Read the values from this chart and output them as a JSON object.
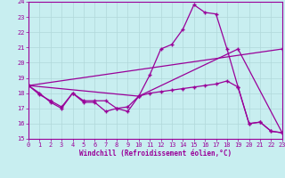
{
  "xlabel": "Windchill (Refroidissement éolien,°C)",
  "bg_color": "#c8eef0",
  "grid_color": "#b0d8da",
  "line_color": "#990099",
  "xlim": [
    0,
    23
  ],
  "ylim": [
    15,
    24
  ],
  "yticks": [
    15,
    16,
    17,
    18,
    19,
    20,
    21,
    22,
    23,
    24
  ],
  "xticks": [
    0,
    1,
    2,
    3,
    4,
    5,
    6,
    7,
    8,
    9,
    10,
    11,
    12,
    13,
    14,
    15,
    16,
    17,
    18,
    19,
    20,
    21,
    22,
    23
  ],
  "line1_x": [
    0,
    1,
    2,
    3,
    4,
    5,
    6,
    7,
    8,
    9,
    10,
    11,
    12,
    13,
    14,
    15,
    16,
    17,
    18,
    19,
    20,
    21,
    22,
    23
  ],
  "line1_y": [
    18.5,
    18.0,
    17.4,
    17.0,
    18.0,
    17.4,
    17.4,
    16.8,
    17.0,
    16.8,
    17.8,
    19.2,
    20.9,
    21.2,
    22.2,
    23.8,
    23.3,
    23.2,
    20.9,
    18.4,
    16.0,
    16.1,
    15.5,
    15.4
  ],
  "line2_x": [
    0,
    10,
    19,
    23
  ],
  "line2_y": [
    18.5,
    17.8,
    20.9,
    15.4
  ],
  "line3_x": [
    0,
    23
  ],
  "line3_y": [
    18.5,
    20.9
  ],
  "line4_x": [
    0,
    1,
    2,
    3,
    4,
    5,
    6,
    7,
    8,
    9,
    10,
    11,
    12,
    13,
    14,
    15,
    16,
    17,
    18,
    19,
    20,
    21,
    22,
    23
  ],
  "line4_y": [
    18.5,
    17.9,
    17.5,
    17.1,
    18.0,
    17.5,
    17.5,
    17.5,
    17.0,
    17.1,
    17.8,
    18.0,
    18.1,
    18.2,
    18.3,
    18.4,
    18.5,
    18.6,
    18.8,
    18.4,
    16.0,
    16.1,
    15.5,
    15.4
  ]
}
